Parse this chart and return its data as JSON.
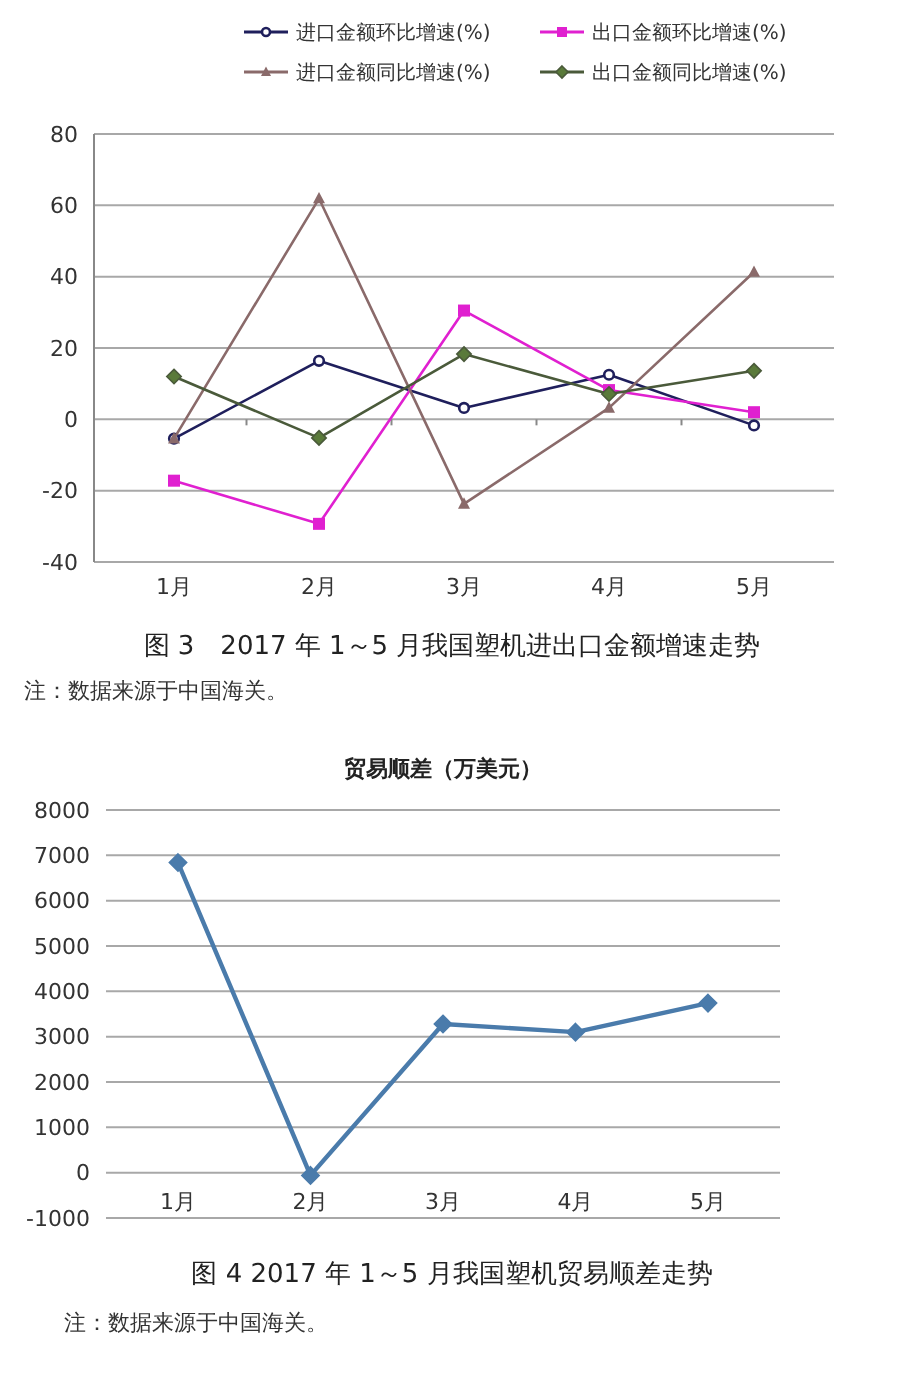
{
  "chart_data": [
    {
      "type": "line",
      "title": "图 3　2017 年 1～5 月我国塑机进出口金额增速走势",
      "annotations": [
        "注：数据来源于中国海关。"
      ],
      "categories": [
        "1月",
        "2月",
        "3月",
        "4月",
        "5月"
      ],
      "series": [
        {
          "name": "进口金额环比增速(%)",
          "color": "#1f1f5c",
          "marker": "circle",
          "values": [
            -5.4,
            16.4,
            3.2,
            12.5,
            -1.7
          ]
        },
        {
          "name": "出口金额环比增速(%)",
          "color": "#e020d0",
          "marker": "square",
          "values": [
            -17.2,
            -29.3,
            30.5,
            8.2,
            2
          ]
        },
        {
          "name": "进口金额同比增速(%)",
          "color": "#8a6a6a",
          "marker": "triangle",
          "values": [
            -5.4,
            61.9,
            -23.7,
            3.2,
            41.3
          ]
        },
        {
          "name": "出口金额同比增速(%)",
          "color": "#4a5a3a",
          "marker": "diamond",
          "values": [
            12,
            -5.2,
            18.3,
            7.1,
            13.6
          ]
        }
      ],
      "ylim": [
        -40,
        80
      ],
      "yticks": [
        -40,
        -20,
        0,
        20,
        40,
        60,
        80
      ],
      "grid": "y",
      "legend": "top"
    },
    {
      "type": "line",
      "title": "贸易顺差（万美元）",
      "annotations": [
        "图 4 2017 年 1～5 月我国塑机贸易顺差走势",
        "注：数据来源于中国海关。"
      ],
      "categories": [
        "1月",
        "2月",
        "3月",
        "4月",
        "5月"
      ],
      "series": [
        {
          "color": "#4a7bab",
          "marker": "diamond",
          "values": [
            6840,
            -60,
            3280,
            3100,
            3740
          ]
        }
      ],
      "ylim": [
        -1000,
        8000
      ],
      "yticks": [
        -1000,
        0,
        1000,
        2000,
        3000,
        4000,
        5000,
        6000,
        7000,
        8000
      ],
      "grid": "y",
      "legend": false
    }
  ]
}
